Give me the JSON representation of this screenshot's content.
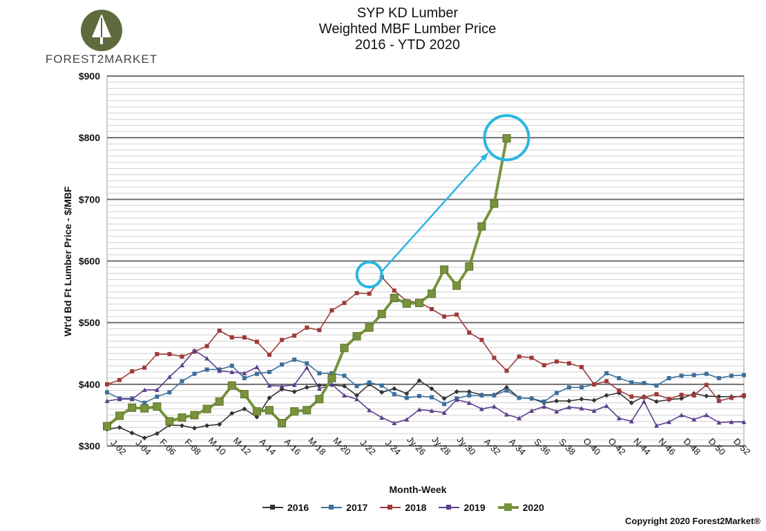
{
  "logo": {
    "text": "FOREST2MARKET",
    "icon": "tree-icon"
  },
  "chart_data": {
    "type": "line",
    "title_lines": [
      "SYP KD Lumber",
      "Weighted MBF Lumber Price",
      "2016 - YTD 2020"
    ],
    "xlabel": "Month-Week",
    "ylabel": "Wt'd Bd Ft Lumber Price - $/MBF",
    "ylim": [
      300,
      900
    ],
    "yticks": [
      300,
      400,
      500,
      600,
      700,
      800,
      900
    ],
    "ytick_labels": [
      "$300",
      "$400",
      "$500",
      "$600",
      "$700",
      "$800",
      "$900"
    ],
    "x_weeks": 52,
    "x_tick_weeks": [
      2,
      4,
      6,
      8,
      10,
      12,
      14,
      16,
      18,
      20,
      22,
      24,
      26,
      28,
      30,
      32,
      34,
      36,
      38,
      40,
      42,
      44,
      46,
      48,
      50,
      52
    ],
    "x_tick_labels": [
      "J-02",
      "J-04",
      "F-06",
      "F-08",
      "M-10",
      "M-12",
      "A-14",
      "A-16",
      "M-18",
      "M-20",
      "J-22",
      "J-24",
      "Jy-26",
      "Jy-28",
      "Jy-30",
      "A-32",
      "A-34",
      "S-36",
      "S-38",
      "O-40",
      "O-42",
      "N-44",
      "N-46",
      "D-48",
      "D-50",
      "D-52"
    ],
    "grid": true,
    "legend_position": "bottom",
    "series": [
      {
        "name": "2016",
        "color": "#333333",
        "marker": "diamond",
        "values": [
          327,
          330,
          321,
          313,
          320,
          334,
          333,
          329,
          333,
          335,
          353,
          360,
          347,
          378,
          392,
          388,
          395,
          398,
          399,
          397,
          382,
          400,
          387,
          393,
          385,
          406,
          393,
          377,
          388,
          388,
          383,
          383,
          395,
          378,
          377,
          370,
          373,
          373,
          376,
          374,
          382,
          386,
          370,
          380,
          372,
          375,
          377,
          385,
          381,
          380,
          380,
          380
        ]
      },
      {
        "name": "2017",
        "color": "#3c6f9c",
        "marker": "square",
        "values": [
          387,
          377,
          377,
          370,
          380,
          387,
          405,
          417,
          424,
          424,
          430,
          410,
          417,
          420,
          432,
          440,
          434,
          418,
          418,
          414,
          397,
          403,
          398,
          384,
          378,
          381,
          379,
          368,
          377,
          382,
          382,
          382,
          390,
          378,
          377,
          372,
          386,
          395,
          395,
          400,
          418,
          410,
          403,
          402,
          398,
          410,
          414,
          415,
          417,
          410,
          414,
          415
        ]
      },
      {
        "name": "2018",
        "color": "#9e3a3a",
        "marker": "square",
        "values": [
          400,
          407,
          421,
          427,
          449,
          449,
          445,
          453,
          462,
          487,
          476,
          476,
          469,
          448,
          472,
          479,
          492,
          488,
          520,
          532,
          548,
          547,
          574,
          552,
          535,
          533,
          522,
          510,
          513,
          484,
          472,
          443,
          422,
          445,
          443,
          431,
          437,
          434,
          428,
          400,
          405,
          390,
          380,
          379,
          384,
          376,
          383,
          382,
          399,
          373,
          378,
          382
        ]
      },
      {
        "name": "2019",
        "color": "#5b3f8c",
        "marker": "triangle",
        "values": [
          373,
          376,
          376,
          391,
          391,
          412,
          431,
          455,
          442,
          422,
          420,
          418,
          428,
          398,
          397,
          399,
          427,
          393,
          400,
          382,
          376,
          358,
          346,
          337,
          343,
          359,
          357,
          354,
          375,
          370,
          360,
          364,
          351,
          345,
          357,
          364,
          356,
          363,
          361,
          357,
          365,
          345,
          340,
          372,
          333,
          339,
          350,
          343,
          350,
          338,
          339,
          339
        ]
      },
      {
        "name": "2020",
        "color": "#77933c",
        "marker": "square-large",
        "values": [
          332,
          349,
          362,
          361,
          364,
          340,
          346,
          350,
          360,
          372,
          398,
          384,
          356,
          358,
          337,
          356,
          358,
          376,
          410,
          459,
          478,
          492,
          514,
          540,
          531,
          532,
          547,
          586,
          560,
          591,
          656,
          693,
          799
        ]
      }
    ],
    "annotations": [
      {
        "type": "circle",
        "week": 22,
        "value": 578,
        "color": "#29b6e0"
      },
      {
        "type": "circle",
        "week": 33,
        "value": 800,
        "color": "#29b6e0"
      },
      {
        "type": "arrow",
        "from_week": 23,
        "from_value": 583,
        "to_week": 31.5,
        "to_value": 775,
        "color": "#29b6e0"
      }
    ]
  },
  "copyright": "Copyright 2020 Forest2Market®"
}
